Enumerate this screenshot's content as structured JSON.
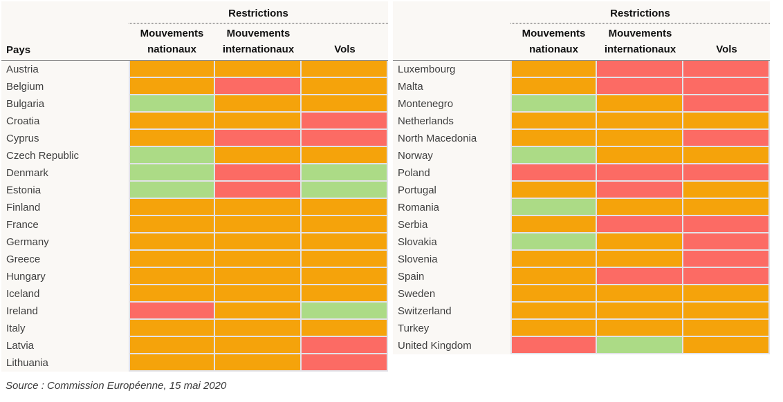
{
  "header": {
    "restrictions": "Restrictions",
    "pays": "Pays",
    "col1": "Mouvements\nnationaux",
    "col2": "Mouvements\ninternationaux",
    "col3": "Vols"
  },
  "source": "Source : Commission Européenne, 15 mai 2020",
  "colors": {
    "orange": "#F5A30B",
    "red": "#FC6B64",
    "green": "#ACDB86",
    "grid_line": "#E2E2E8",
    "label_background": "#FAF8F5",
    "header_rule": "#8C8C8C",
    "country_text": "#3F3F3F"
  },
  "chart_data": {
    "type": "heatmap",
    "title": "Restrictions",
    "columns": [
      "Mouvements nationaux",
      "Mouvements internationaux",
      "Vols"
    ],
    "row_label": "Pays",
    "value_colors": {
      "orange": "#F5A30B",
      "red": "#FC6B64",
      "green": "#ACDB86"
    },
    "tables": [
      {
        "rows": [
          {
            "country": "Austria",
            "values": [
              "orange",
              "orange",
              "orange"
            ]
          },
          {
            "country": "Belgium",
            "values": [
              "orange",
              "red",
              "orange"
            ]
          },
          {
            "country": "Bulgaria",
            "values": [
              "green",
              "orange",
              "orange"
            ]
          },
          {
            "country": "Croatia",
            "values": [
              "orange",
              "orange",
              "red"
            ]
          },
          {
            "country": "Cyprus",
            "values": [
              "orange",
              "red",
              "red"
            ]
          },
          {
            "country": "Czech Republic",
            "values": [
              "green",
              "orange",
              "orange"
            ]
          },
          {
            "country": "Denmark",
            "values": [
              "green",
              "red",
              "green"
            ]
          },
          {
            "country": "Estonia",
            "values": [
              "green",
              "red",
              "green"
            ]
          },
          {
            "country": "Finland",
            "values": [
              "orange",
              "orange",
              "orange"
            ]
          },
          {
            "country": "France",
            "values": [
              "orange",
              "orange",
              "orange"
            ]
          },
          {
            "country": "Germany",
            "values": [
              "orange",
              "orange",
              "orange"
            ]
          },
          {
            "country": "Greece",
            "values": [
              "orange",
              "orange",
              "orange"
            ]
          },
          {
            "country": "Hungary",
            "values": [
              "orange",
              "orange",
              "orange"
            ]
          },
          {
            "country": "Iceland",
            "values": [
              "orange",
              "orange",
              "orange"
            ]
          },
          {
            "country": "Ireland",
            "values": [
              "red",
              "orange",
              "green"
            ]
          },
          {
            "country": "Italy",
            "values": [
              "orange",
              "orange",
              "orange"
            ]
          },
          {
            "country": "Latvia",
            "values": [
              "orange",
              "orange",
              "red"
            ]
          },
          {
            "country": "Lithuania",
            "values": [
              "orange",
              "orange",
              "red"
            ]
          }
        ]
      },
      {
        "rows": [
          {
            "country": "Luxembourg",
            "values": [
              "orange",
              "red",
              "red"
            ]
          },
          {
            "country": "Malta",
            "values": [
              "orange",
              "red",
              "red"
            ]
          },
          {
            "country": "Montenegro",
            "values": [
              "green",
              "orange",
              "red"
            ]
          },
          {
            "country": "Netherlands",
            "values": [
              "orange",
              "orange",
              "orange"
            ]
          },
          {
            "country": "North Macedonia",
            "values": [
              "orange",
              "orange",
              "red"
            ]
          },
          {
            "country": "Norway",
            "values": [
              "green",
              "orange",
              "orange"
            ]
          },
          {
            "country": "Poland",
            "values": [
              "red",
              "red",
              "red"
            ]
          },
          {
            "country": "Portugal",
            "values": [
              "orange",
              "red",
              "orange"
            ]
          },
          {
            "country": "Romania",
            "values": [
              "green",
              "orange",
              "orange"
            ]
          },
          {
            "country": "Serbia",
            "values": [
              "orange",
              "red",
              "red"
            ]
          },
          {
            "country": "Slovakia",
            "values": [
              "green",
              "orange",
              "red"
            ]
          },
          {
            "country": "Slovenia",
            "values": [
              "orange",
              "orange",
              "red"
            ]
          },
          {
            "country": "Spain",
            "values": [
              "orange",
              "red",
              "red"
            ]
          },
          {
            "country": "Sweden",
            "values": [
              "orange",
              "orange",
              "orange"
            ]
          },
          {
            "country": "Switzerland",
            "values": [
              "orange",
              "orange",
              "orange"
            ]
          },
          {
            "country": "Turkey",
            "values": [
              "orange",
              "orange",
              "orange"
            ]
          },
          {
            "country": "United Kingdom",
            "values": [
              "red",
              "green",
              "orange"
            ]
          }
        ]
      }
    ]
  }
}
